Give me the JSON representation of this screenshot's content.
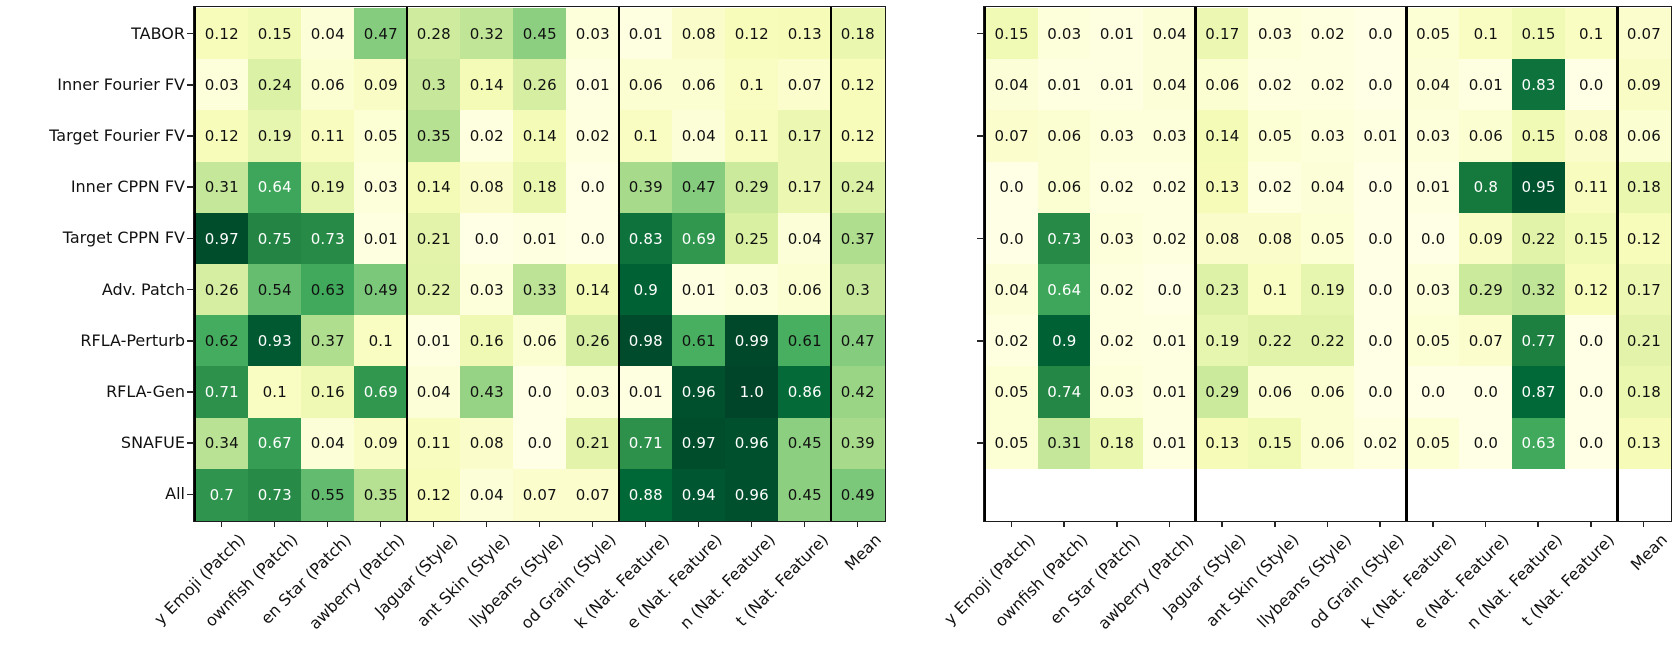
{
  "figure": {
    "background": "#ffffff"
  },
  "colormap": {
    "name": "YlGn",
    "stops": [
      [
        "0.0",
        "#ffffe5"
      ],
      [
        "0.125",
        "#f7fcb9"
      ],
      [
        "0.25",
        "#d9f0a3"
      ],
      [
        "0.375",
        "#addd8e"
      ],
      [
        "0.5",
        "#78c679"
      ],
      [
        "0.625",
        "#41ab5d"
      ],
      [
        "0.75",
        "#238443"
      ],
      [
        "0.875",
        "#006837"
      ],
      [
        "1.0",
        "#004529"
      ]
    ],
    "separator_color": "#000000"
  },
  "chart_data": [
    {
      "type": "heatmap",
      "position": "left",
      "row_labels": [
        "TABOR",
        "Inner Fourier FV",
        "Target Fourier FV",
        "Inner CPPN FV",
        "Target CPPN FV",
        "Adv. Patch",
        "RFLA-Perturb",
        "RFLA-Gen",
        "SNAFUE",
        "All"
      ],
      "col_labels": [
        "y Emoji (Patch)",
        "ownfish (Patch)",
        "en Star (Patch)",
        "awberry (Patch)",
        "Jaguar (Style)",
        "ant Skin (Style)",
        "llybeans (Style)",
        "od Grain (Style)",
        "k (Nat. Feature)",
        "e (Nat. Feature)",
        "n (Nat. Feature)",
        "t (Nat. Feature)",
        "Mean"
      ],
      "values": [
        [
          "0.12",
          "0.15",
          "0.04",
          "0.47",
          "0.28",
          "0.32",
          "0.45",
          "0.03",
          "0.01",
          "0.08",
          "0.12",
          "0.13",
          "0.18"
        ],
        [
          "0.03",
          "0.24",
          "0.06",
          "0.09",
          "0.3",
          "0.14",
          "0.26",
          "0.01",
          "0.06",
          "0.06",
          "0.1",
          "0.07",
          "0.12"
        ],
        [
          "0.12",
          "0.19",
          "0.11",
          "0.05",
          "0.35",
          "0.02",
          "0.14",
          "0.02",
          "0.1",
          "0.04",
          "0.11",
          "0.17",
          "0.12"
        ],
        [
          "0.31",
          "0.64",
          "0.19",
          "0.03",
          "0.14",
          "0.08",
          "0.18",
          "0.0",
          "0.39",
          "0.47",
          "0.29",
          "0.17",
          "0.24"
        ],
        [
          "0.97",
          "0.75",
          "0.73",
          "0.01",
          "0.21",
          "0.0",
          "0.01",
          "0.0",
          "0.83",
          "0.69",
          "0.25",
          "0.04",
          "0.37"
        ],
        [
          "0.26",
          "0.54",
          "0.63",
          "0.49",
          "0.22",
          "0.03",
          "0.33",
          "0.14",
          "0.9",
          "0.01",
          "0.03",
          "0.06",
          "0.3"
        ],
        [
          "0.62",
          "0.93",
          "0.37",
          "0.1",
          "0.01",
          "0.16",
          "0.06",
          "0.26",
          "0.98",
          "0.61",
          "0.99",
          "0.61",
          "0.47"
        ],
        [
          "0.71",
          "0.1",
          "0.16",
          "0.69",
          "0.04",
          "0.43",
          "0.0",
          "0.03",
          "0.01",
          "0.96",
          "1.0",
          "0.86",
          "0.42"
        ],
        [
          "0.34",
          "0.67",
          "0.04",
          "0.09",
          "0.11",
          "0.08",
          "0.0",
          "0.21",
          "0.71",
          "0.97",
          "0.96",
          "0.45",
          "0.39"
        ],
        [
          "0.7",
          "0.73",
          "0.55",
          "0.35",
          "0.12",
          "0.04",
          "0.07",
          "0.07",
          "0.88",
          "0.94",
          "0.96",
          "0.45",
          "0.49"
        ]
      ],
      "vmin": 0,
      "vmax": 1,
      "group_separator_cols": [
        0,
        4,
        8,
        12
      ],
      "empty_trailing_rows": 0
    },
    {
      "type": "heatmap",
      "position": "right",
      "row_labels": [],
      "col_labels": [
        "y Emoji (Patch)",
        "ownfish (Patch)",
        "en Star (Patch)",
        "awberry (Patch)",
        "Jaguar (Style)",
        "ant Skin (Style)",
        "llybeans (Style)",
        "od Grain (Style)",
        "k (Nat. Feature)",
        "e (Nat. Feature)",
        "n (Nat. Feature)",
        "t (Nat. Feature)",
        "Mean"
      ],
      "values": [
        [
          "0.15",
          "0.03",
          "0.01",
          "0.04",
          "0.17",
          "0.03",
          "0.02",
          "0.0",
          "0.05",
          "0.1",
          "0.15",
          "0.1",
          "0.07"
        ],
        [
          "0.04",
          "0.01",
          "0.01",
          "0.04",
          "0.06",
          "0.02",
          "0.02",
          "0.0",
          "0.04",
          "0.01",
          "0.83",
          "0.0",
          "0.09"
        ],
        [
          "0.07",
          "0.06",
          "0.03",
          "0.03",
          "0.14",
          "0.05",
          "0.03",
          "0.01",
          "0.03",
          "0.06",
          "0.15",
          "0.08",
          "0.06"
        ],
        [
          "0.0",
          "0.06",
          "0.02",
          "0.02",
          "0.13",
          "0.02",
          "0.04",
          "0.0",
          "0.01",
          "0.8",
          "0.95",
          "0.11",
          "0.18"
        ],
        [
          "0.0",
          "0.73",
          "0.03",
          "0.02",
          "0.08",
          "0.08",
          "0.05",
          "0.0",
          "0.0",
          "0.09",
          "0.22",
          "0.15",
          "0.12"
        ],
        [
          "0.04",
          "0.64",
          "0.02",
          "0.0",
          "0.23",
          "0.1",
          "0.19",
          "0.0",
          "0.03",
          "0.29",
          "0.32",
          "0.12",
          "0.17"
        ],
        [
          "0.02",
          "0.9",
          "0.02",
          "0.01",
          "0.19",
          "0.22",
          "0.22",
          "0.0",
          "0.05",
          "0.07",
          "0.77",
          "0.0",
          "0.21"
        ],
        [
          "0.05",
          "0.74",
          "0.03",
          "0.01",
          "0.29",
          "0.06",
          "0.06",
          "0.0",
          "0.0",
          "0.0",
          "0.87",
          "0.0",
          "0.18"
        ],
        [
          "0.05",
          "0.31",
          "0.18",
          "0.01",
          "0.13",
          "0.15",
          "0.06",
          "0.02",
          "0.05",
          "0.0",
          "0.63",
          "0.0",
          "0.13"
        ]
      ],
      "vmin": 0,
      "vmax": 1,
      "group_separator_cols": [
        0,
        4,
        8,
        12
      ],
      "empty_trailing_rows": 1
    }
  ]
}
